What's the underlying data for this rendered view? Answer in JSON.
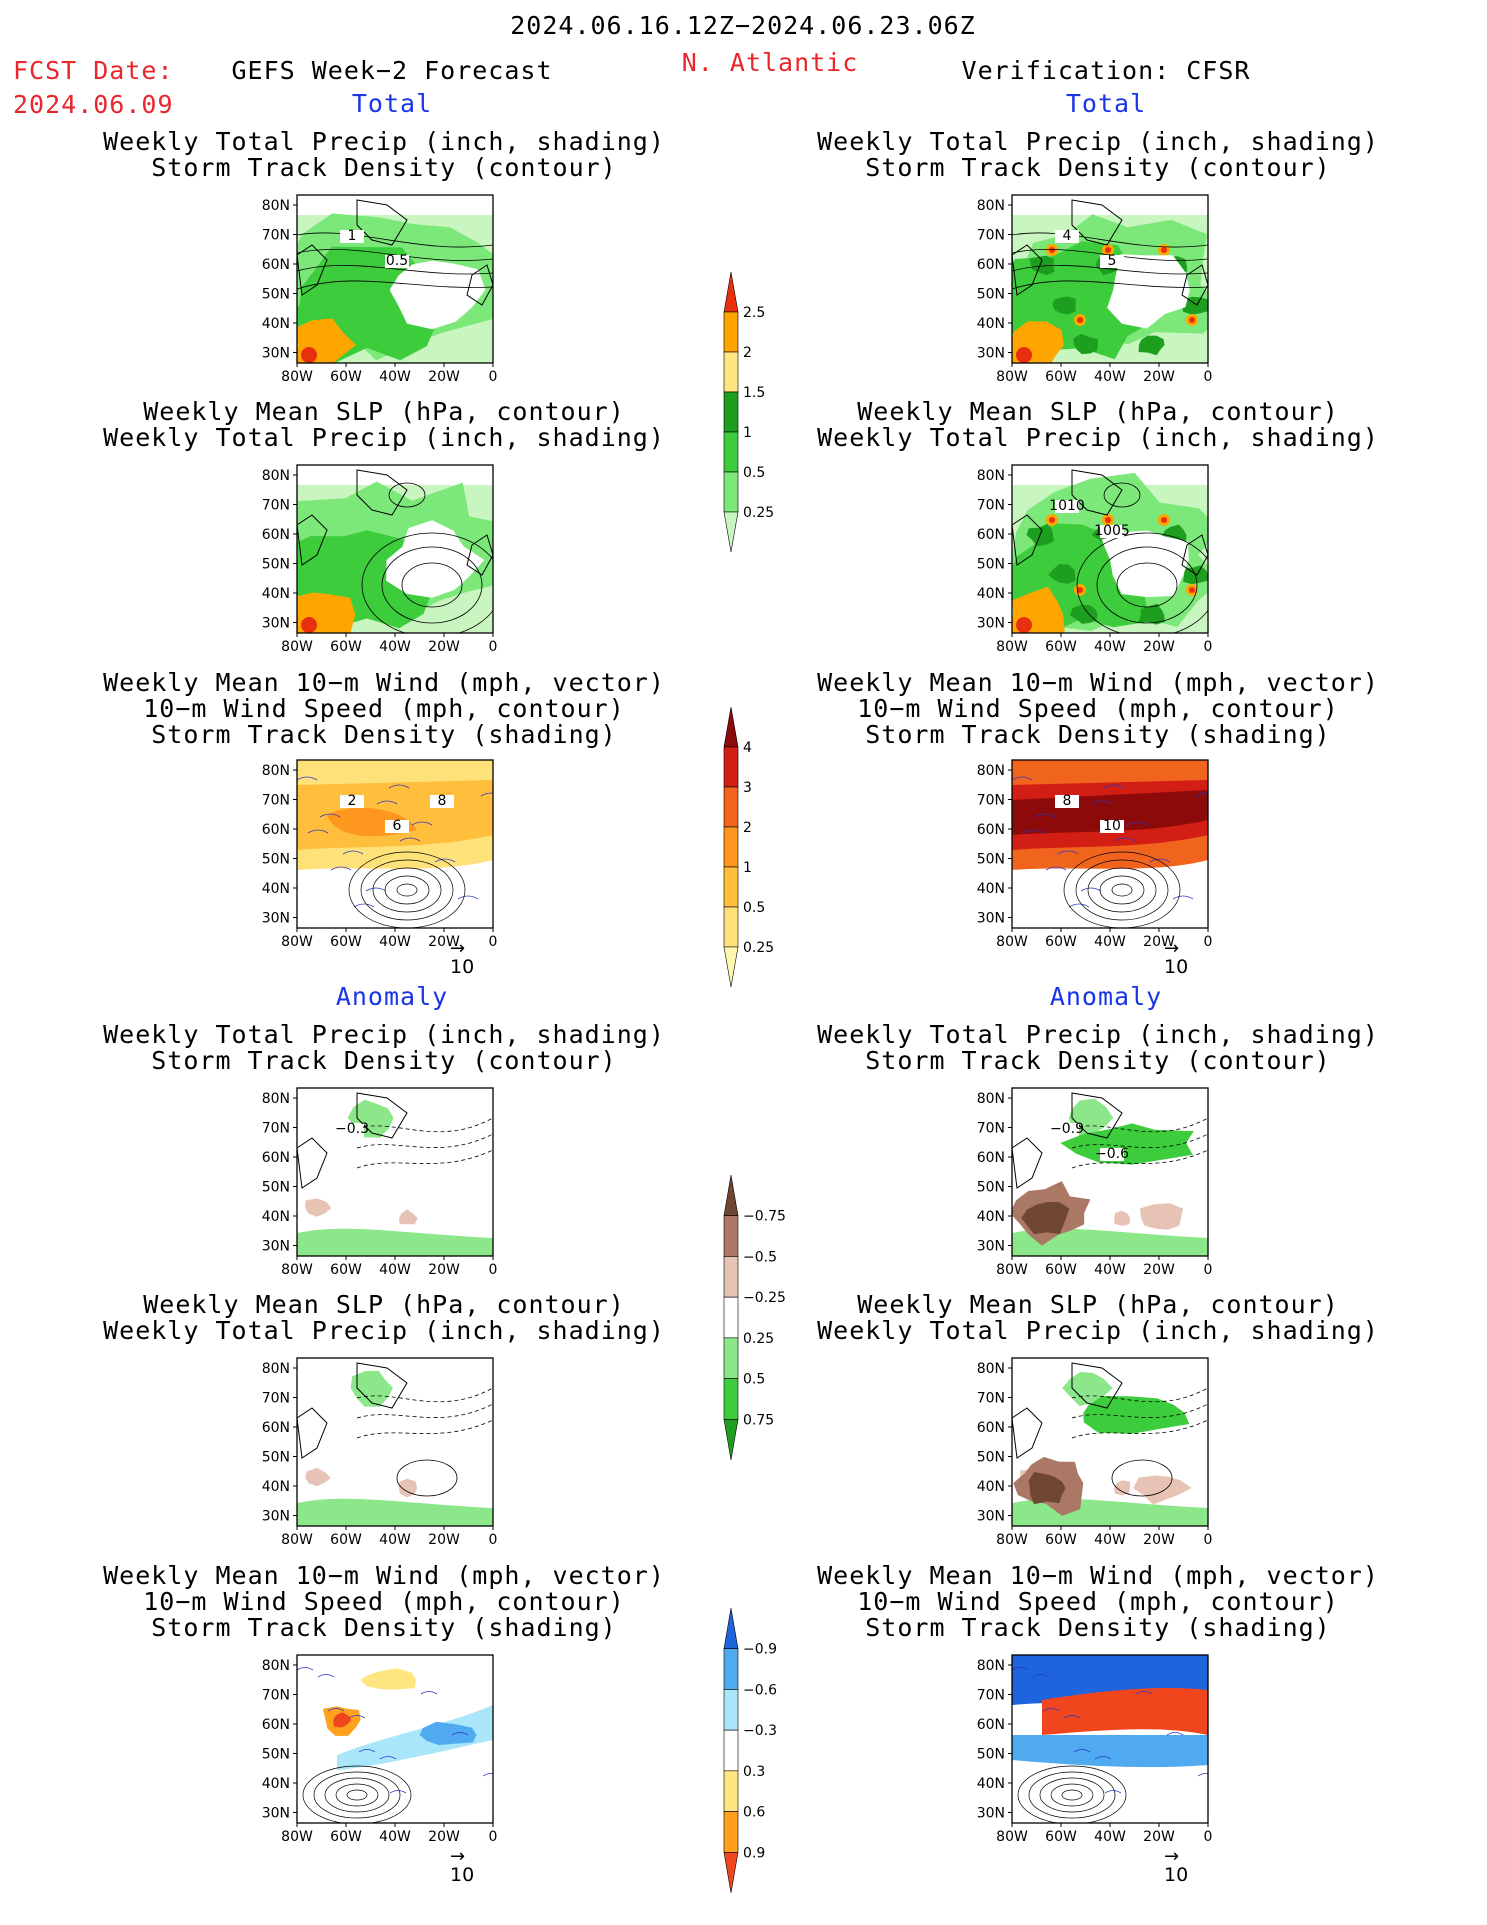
{
  "header": {
    "period": "2024.06.16.12Z−2024.06.23.06Z",
    "fcst_label": "FCST Date:",
    "fcst_date": "2024.06.09",
    "forecast_title": "GEFS Week−2 Forecast",
    "region": "N. Atlantic",
    "verification_title": "Verification: CFSR"
  },
  "sections": {
    "total": "Total",
    "anomaly": "Anomaly"
  },
  "panel_titles": {
    "precip_track": [
      "Weekly Total Precip (inch, shading)",
      "Storm Track Density (contour)"
    ],
    "slp_precip": [
      "Weekly Mean SLP (hPa, contour)",
      "Weekly Total Precip (inch, shading)"
    ],
    "wind_track": [
      "Weekly Mean 10−m Wind (mph, vector)",
      "10−m Wind Speed (mph, contour)",
      "Storm Track Density (shading)"
    ]
  },
  "axes": {
    "lat_ticks": [
      "80N",
      "70N",
      "60N",
      "50N",
      "40N",
      "30N"
    ],
    "lon_ticks": [
      "80W",
      "60W",
      "40W",
      "20W",
      "0"
    ]
  },
  "vector_reference": "10",
  "contour_labels": {
    "fc_precip_track": [
      "1",
      "0.5"
    ],
    "vf_precip_track": [
      "4",
      "5"
    ],
    "vf_slp_precip": [
      "1010",
      "1005"
    ],
    "fc_wind_track": [
      "2",
      "6",
      "8"
    ],
    "vf_wind_track": [
      "8",
      "10"
    ],
    "fc_anom_precip_track": [
      "−0.3"
    ],
    "vf_anom_precip_track": [
      "−0.9",
      "−0.6"
    ]
  },
  "colorbars": {
    "precip_total": {
      "levels": [
        "0.25",
        "0.5",
        "1",
        "1.5",
        "2",
        "2.5"
      ],
      "colors": [
        "#c8f5c0",
        "#7de87a",
        "#3ccc3c",
        "#1e9e1e",
        "#ffe680",
        "#ffa500",
        "#e8300e"
      ]
    },
    "track_total": {
      "levels": [
        "0.25",
        "0.5",
        "1",
        "2",
        "3",
        "4"
      ],
      "colors": [
        "#fff6b0",
        "#ffe17a",
        "#ffbe3c",
        "#ff961e",
        "#f0641e",
        "#d21e14",
        "#8c0a0a"
      ]
    },
    "precip_anom": {
      "levels": [
        "0.75",
        "0.5",
        "0.25",
        "−0.25",
        "−0.5",
        "−0.75"
      ],
      "colors": [
        "#1e9e1e",
        "#3ccc3c",
        "#8ce68a",
        "#ffffff",
        "#e6c3b4",
        "#aa7864",
        "#6e4632"
      ]
    },
    "track_anom": {
      "levels": [
        "0.9",
        "0.6",
        "0.3",
        "−0.3",
        "−0.6",
        "−0.9"
      ],
      "colors": [
        "#f0461e",
        "#ffa01e",
        "#ffe680",
        "#ffffff",
        "#aae6fa",
        "#50aaf0",
        "#1e64dc"
      ]
    }
  },
  "colors": {
    "title_red": "#e8262b",
    "section_blue": "#1a35e8"
  }
}
